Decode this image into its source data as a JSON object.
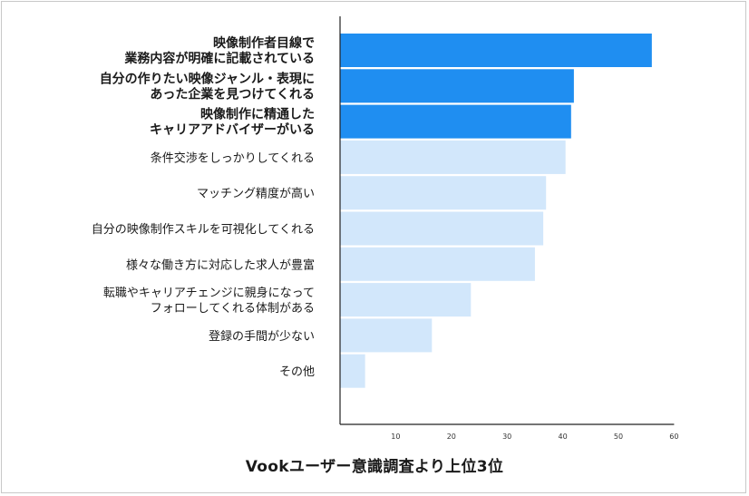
{
  "caption": "Vookユーザー意識調査より上位3位",
  "chart_data": {
    "type": "bar",
    "orientation": "horizontal",
    "title": "",
    "xlabel": "",
    "ylabel": "",
    "xlim": [
      0,
      60
    ],
    "xticks": [
      10,
      20,
      30,
      40,
      50,
      60
    ],
    "grid": false,
    "categories": [
      [
        "映像制作者目線で",
        "業務内容が明確に記載されている"
      ],
      [
        "自分の作りたい映像ジャンル・表現に",
        "あった企業を見つけてくれる"
      ],
      [
        "映像制作に精通した",
        "キャリアアドバイザーがいる"
      ],
      [
        "条件交渉をしっかりしてくれる"
      ],
      [
        "マッチング精度が高い"
      ],
      [
        "自分の映像制作スキルを可視化してくれる"
      ],
      [
        "様々な働き方に対応した求人が豊富"
      ],
      [
        "転職やキャリアチェンジに親身になって",
        "フォローしてくれる体制がある"
      ],
      [
        "登録の手間が少ない"
      ],
      [
        "その他"
      ]
    ],
    "values": [
      56,
      42,
      41.5,
      40.5,
      37,
      36.5,
      35,
      23.5,
      16.5,
      4.5
    ],
    "highlighted": [
      true,
      true,
      true,
      false,
      false,
      false,
      false,
      false,
      false,
      false
    ],
    "colors": {
      "highlight": "#1f8ef1",
      "normal": "#d2e7fb",
      "axis": "#222222"
    }
  }
}
